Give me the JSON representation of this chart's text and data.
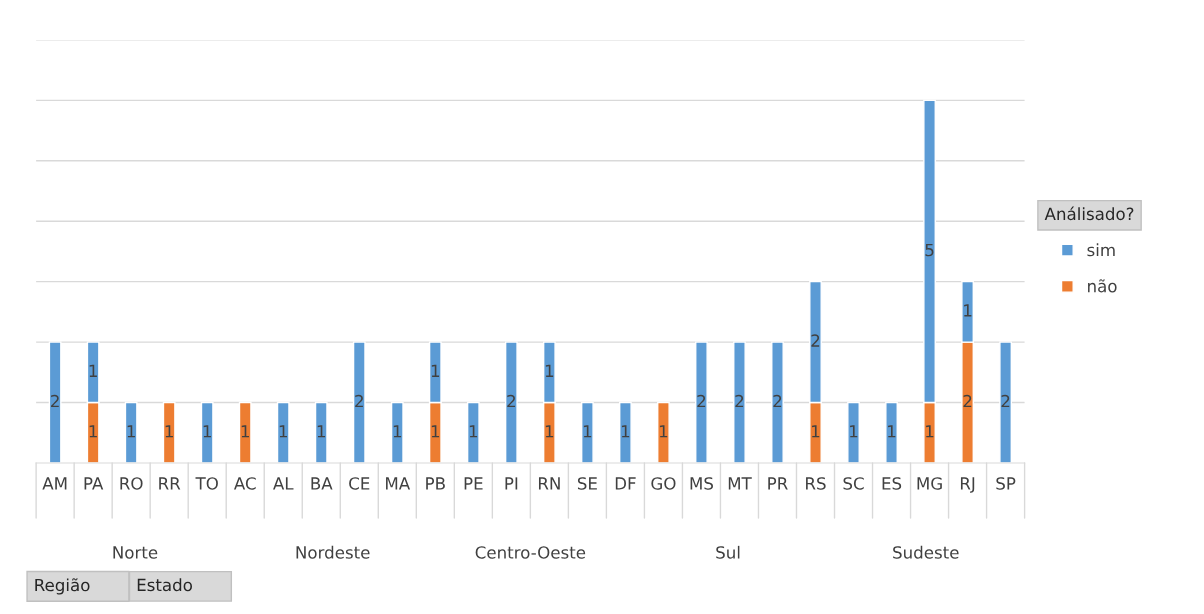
{
  "chart_data": {
    "type": "bar",
    "stacked": true,
    "relative": false,
    "categories": [
      "AM",
      "PA",
      "RO",
      "RR",
      "TO",
      "AC",
      "AL",
      "BA",
      "CE",
      "MA",
      "PB",
      "PE",
      "PI",
      "RN",
      "SE",
      "DF",
      "GO",
      "MS",
      "MT",
      "PR",
      "RS",
      "SC",
      "ES",
      "MG",
      "RJ",
      "SP"
    ],
    "series": [
      {
        "name": "não",
        "color": "#ed7d31",
        "values": [
          null,
          1,
          null,
          1,
          null,
          1,
          null,
          null,
          null,
          null,
          1,
          null,
          null,
          1,
          null,
          null,
          1,
          null,
          null,
          null,
          1,
          null,
          null,
          1,
          2,
          null
        ]
      },
      {
        "name": "sim",
        "color": "#5b9bd5",
        "values": [
          2,
          1,
          1,
          null,
          1,
          null,
          1,
          1,
          2,
          1,
          1,
          1,
          2,
          1,
          1,
          1,
          null,
          2,
          2,
          2,
          2,
          1,
          1,
          5,
          1,
          2
        ]
      }
    ],
    "ylim": [
      0,
      7
    ],
    "yticks": [
      {
        "value": 1,
        "label": null
      },
      {
        "value": 2,
        "label": null
      },
      {
        "value": 3,
        "label": null
      },
      {
        "value": 4,
        "label": null
      },
      {
        "value": 5,
        "label": null
      },
      {
        "value": 6,
        "label": null
      },
      {
        "value": 7,
        "label": null
      }
    ],
    "tick_labels": "x",
    "grid": "y",
    "data_labels": true,
    "legend": "right",
    "legend_title": "Análisado?",
    "annotations": [
      "Norte",
      "Nordeste",
      "Centro-Oeste",
      "Sul",
      "Sudeste",
      "Região",
      "Estado"
    ]
  }
}
